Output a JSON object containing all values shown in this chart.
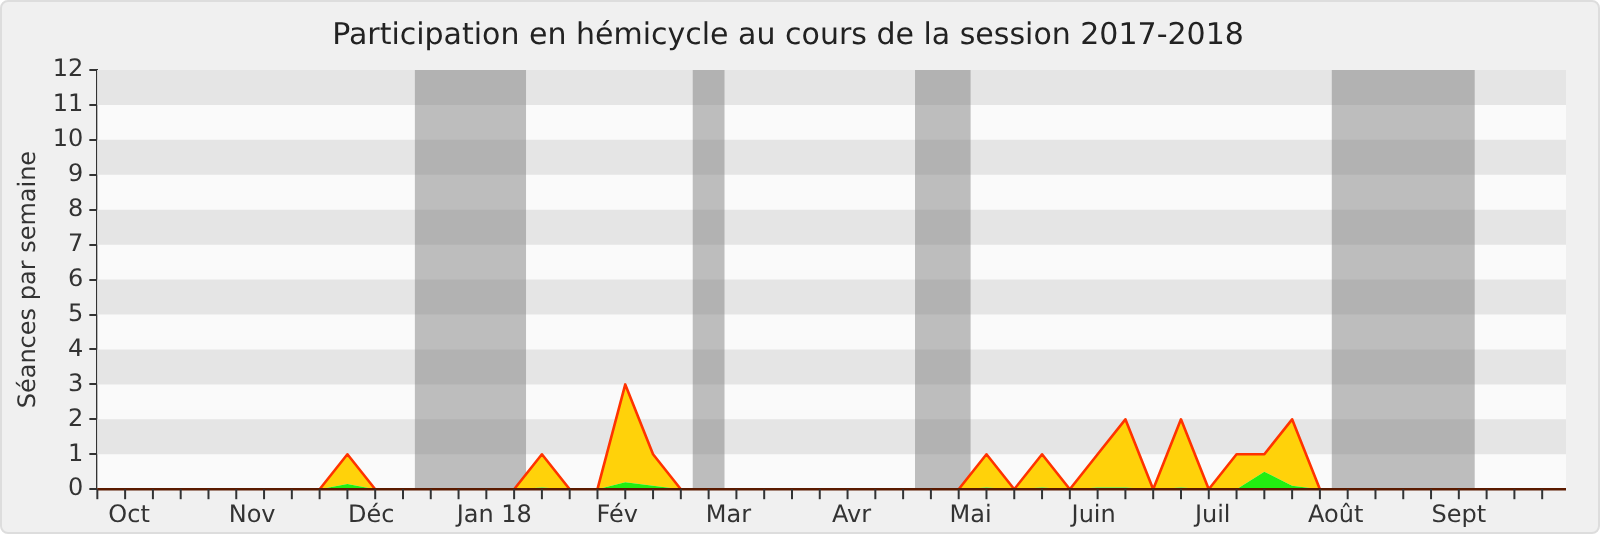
{
  "chart_data": {
    "type": "area",
    "title": "Participation en hémicycle au cours de la session 2017-2018",
    "ylabel": "Séances par semaine",
    "x": [
      "2017-09-23",
      "2017-09-30",
      "2017-10-07",
      "2017-10-14",
      "2017-10-21",
      "2017-10-28",
      "2017-11-04",
      "2017-11-11",
      "2017-11-18",
      "2017-11-25",
      "2017-12-02",
      "2017-12-09",
      "2017-12-16",
      "2017-12-23",
      "2017-12-30",
      "2018-01-06",
      "2018-01-13",
      "2018-01-20",
      "2018-01-27",
      "2018-02-03",
      "2018-02-10",
      "2018-02-17",
      "2018-02-24",
      "2018-03-03",
      "2018-03-10",
      "2018-03-17",
      "2018-03-24",
      "2018-03-31",
      "2018-04-07",
      "2018-04-14",
      "2018-04-21",
      "2018-04-28",
      "2018-05-05",
      "2018-05-12",
      "2018-05-19",
      "2018-05-26",
      "2018-06-02",
      "2018-06-09",
      "2018-06-16",
      "2018-06-23",
      "2018-06-30",
      "2018-07-07",
      "2018-07-14",
      "2018-07-21",
      "2018-07-28",
      "2018-08-04",
      "2018-08-11",
      "2018-08-18",
      "2018-08-25",
      "2018-09-01",
      "2018-09-08",
      "2018-09-15",
      "2018-09-22"
    ],
    "stacked": true,
    "series": [
      {
        "color": "#22ee11",
        "values": [
          0,
          0,
          0,
          0,
          0,
          0,
          0,
          0,
          0,
          0.15,
          0,
          0,
          0,
          0,
          0,
          0,
          0.05,
          0,
          0,
          0.2,
          0.1,
          0,
          0,
          0,
          0,
          0,
          0,
          0,
          0,
          0,
          0,
          0,
          0.05,
          0,
          0.05,
          0,
          0.05,
          0.05,
          0,
          0.05,
          0,
          0,
          0.5,
          0.1,
          0,
          0,
          0,
          0,
          0,
          0,
          0,
          0,
          0
        ]
      },
      {
        "color": "#ffd20a",
        "values": [
          0,
          0,
          0,
          0,
          0,
          0,
          0,
          0,
          0,
          0.85,
          0,
          0,
          0,
          0,
          0,
          0,
          0.95,
          0,
          0,
          2.8,
          0.9,
          0,
          0,
          0,
          0,
          0,
          0,
          0,
          0,
          0,
          0,
          0,
          0.95,
          0,
          0.95,
          0,
          0.95,
          1.95,
          0,
          1.95,
          0,
          1,
          0.5,
          1.9,
          0,
          0,
          0,
          0,
          0,
          0,
          0,
          0,
          0
        ]
      }
    ],
    "xlim": [
      "2017-09-23",
      "2018-09-28"
    ],
    "xticks": [
      {
        "value": "2017-10-01",
        "label": "Oct"
      },
      {
        "value": "2017-11-01",
        "label": "Nov"
      },
      {
        "value": "2017-12-01",
        "label": "Déc"
      },
      {
        "value": "2018-01-01",
        "label": "Jan 18"
      },
      {
        "value": "2018-02-01",
        "label": "Fév"
      },
      {
        "value": "2018-03-01",
        "label": "Mar"
      },
      {
        "value": "2018-04-01",
        "label": "Avr"
      },
      {
        "value": "2018-05-01",
        "label": "Mai"
      },
      {
        "value": "2018-06-01",
        "label": "Juin"
      },
      {
        "value": "2018-07-01",
        "label": "Juil"
      },
      {
        "value": "2018-08-01",
        "label": "Août"
      },
      {
        "value": "2018-09-01",
        "label": "Sept"
      }
    ],
    "ylim": [
      0,
      12
    ],
    "yticks": [
      0,
      1,
      2,
      3,
      4,
      5,
      6,
      7,
      8,
      9,
      10,
      11,
      12
    ],
    "legend": false,
    "marker": "none",
    "bands": [
      {
        "axis": "x",
        "from": "2017-12-12",
        "to": "2018-01-09",
        "color": "#808080"
      },
      {
        "axis": "x",
        "from": "2018-02-20",
        "to": "2018-02-28",
        "color": "#808080"
      },
      {
        "axis": "x",
        "from": "2018-04-17",
        "to": "2018-05-01",
        "color": "#808080"
      },
      {
        "axis": "x",
        "from": "2018-07-31",
        "to": "2018-09-05",
        "color": "#808080"
      }
    ]
  }
}
